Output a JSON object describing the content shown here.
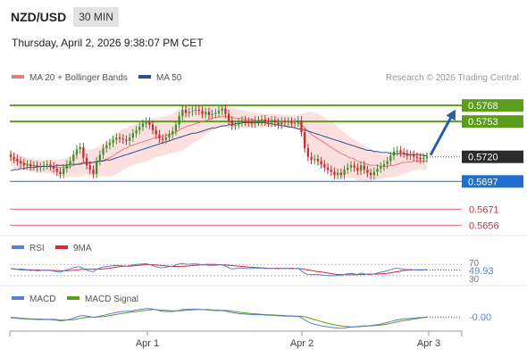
{
  "header": {
    "pair": "NZD/USD",
    "timeframe": "30 MIN",
    "timestamp": "Thursday, April 2, 2026 9:38:07 PM CET"
  },
  "legend": {
    "ma20": "MA 20 + Bollinger Bands",
    "ma50": "MA 50",
    "copyright": "Research © 2026 Trading Central"
  },
  "colors": {
    "green_level": "#5a9e1c",
    "blue_level": "#1f6fd1",
    "red_level": "#d9282f",
    "bull_candle": "#3f8f2a",
    "bear_candle": "#c52b2b",
    "ma20": "#e87a7a",
    "ma50": "#2a4f8f",
    "band": "#fbd6d6",
    "arrow": "#2a5da8",
    "rsi": "#5b7fd6",
    "rsi_ma": "#d9282f",
    "macd": "#5b7fd6",
    "macd_signal": "#5a9e1c"
  },
  "rsi_panel": {
    "label": "RSI",
    "ma_label": "9MA",
    "value": "49.93",
    "upper": "70",
    "lower": "30"
  },
  "macd_panel": {
    "label": "MACD",
    "signal_label": "MACD Signal",
    "value": "-0.00"
  },
  "chart_data": {
    "type": "candlestick",
    "instrument": "NZD/USD",
    "x_tick_labels": [
      "Apr 1",
      "Apr 2",
      "Apr 3"
    ],
    "ylim": [
      0.5648,
      0.5779
    ],
    "current_price": "0.5720",
    "levels": [
      {
        "value": 0.5768,
        "label": "0.5768",
        "kind": "resistance"
      },
      {
        "value": 0.5753,
        "label": "0.5753",
        "kind": "resistance"
      },
      {
        "value": 0.5697,
        "label": "0.5697",
        "kind": "pivot"
      },
      {
        "value": 0.5671,
        "label": "0.5671",
        "kind": "support"
      },
      {
        "value": 0.5656,
        "label": "0.5656",
        "kind": "support"
      }
    ],
    "close": [
      0.572,
      0.5718,
      0.5716,
      0.5714,
      0.5712,
      0.5713,
      0.5711,
      0.5712,
      0.571,
      0.5711,
      0.5712,
      0.5713,
      0.5711,
      0.5709,
      0.5706,
      0.5704,
      0.5709,
      0.5713,
      0.5716,
      0.5722,
      0.5727,
      0.5729,
      0.5719,
      0.5712,
      0.5708,
      0.5704,
      0.5716,
      0.5722,
      0.5728,
      0.5731,
      0.5733,
      0.5736,
      0.5738,
      0.5737,
      0.5736,
      0.5735,
      0.5738,
      0.5742,
      0.5745,
      0.5748,
      0.5751,
      0.5753,
      0.575,
      0.5745,
      0.5741,
      0.5737,
      0.5736,
      0.5738,
      0.5741,
      0.5744,
      0.575,
      0.5758,
      0.5764,
      0.5761,
      0.5762,
      0.5763,
      0.5764,
      0.5763,
      0.576,
      0.5762,
      0.5759,
      0.576,
      0.5761,
      0.5763,
      0.5765,
      0.576,
      0.5754,
      0.5749,
      0.575,
      0.5752,
      0.5754,
      0.5753,
      0.5752,
      0.5751,
      0.5754,
      0.5753,
      0.5755,
      0.5753,
      0.5752,
      0.5754,
      0.5752,
      0.575,
      0.5753,
      0.5752,
      0.5753,
      0.5751,
      0.5752,
      0.5754,
      0.5743,
      0.5728,
      0.572,
      0.5717,
      0.5718,
      0.5716,
      0.5713,
      0.571,
      0.5708,
      0.5706,
      0.5703,
      0.5705,
      0.5703,
      0.5708,
      0.571,
      0.5712,
      0.571,
      0.5707,
      0.5712,
      0.5708,
      0.5705,
      0.5703,
      0.5706,
      0.5709,
      0.5711,
      0.5713,
      0.5716,
      0.5721,
      0.5725,
      0.5726,
      0.5724,
      0.5723,
      0.5721,
      0.5722,
      0.572,
      0.5719,
      0.5718,
      0.5719,
      0.572
    ],
    "ma20": [
      0.5718,
      0.5717,
      0.5716,
      0.5715,
      0.5714,
      0.5713,
      0.5712,
      0.5712,
      0.5711,
      0.5711,
      0.5711,
      0.5711,
      0.5711,
      0.571,
      0.571,
      0.571,
      0.571,
      0.571,
      0.5711,
      0.5712,
      0.5713,
      0.5714,
      0.5715,
      0.5715,
      0.5715,
      0.5715,
      0.5716,
      0.5716,
      0.5717,
      0.5718,
      0.5719,
      0.5721,
      0.5723,
      0.5725,
      0.5727,
      0.5728,
      0.573,
      0.5731,
      0.5732,
      0.5733,
      0.5734,
      0.5735,
      0.5736,
      0.5737,
      0.5738,
      0.5738,
      0.5739,
      0.574,
      0.5741,
      0.5742,
      0.5743,
      0.5745,
      0.5747,
      0.5748,
      0.5749,
      0.575,
      0.5751,
      0.5752,
      0.5753,
      0.5754,
      0.5755,
      0.5756,
      0.5757,
      0.5757,
      0.5758,
      0.5758,
      0.5757,
      0.5757,
      0.5756,
      0.5756,
      0.5756,
      0.5755,
      0.5755,
      0.5755,
      0.5754,
      0.5754,
      0.5754,
      0.5754,
      0.5754,
      0.5754,
      0.5754,
      0.5754,
      0.5753,
      0.5753,
      0.5753,
      0.5753,
      0.5753,
      0.5752,
      0.575,
      0.5747,
      0.5744,
      0.5741,
      0.5739,
      0.5737,
      0.5735,
      0.5733,
      0.5731,
      0.5729,
      0.5727,
      0.5725,
      0.5723,
      0.5722,
      0.572,
      0.5719,
      0.5718,
      0.5716,
      0.5715,
      0.5714,
      0.5713,
      0.5712,
      0.5712,
      0.5712,
      0.5711,
      0.5711,
      0.5711,
      0.5712,
      0.5712,
      0.5713,
      0.5714,
      0.5715,
      0.5715,
      0.5715,
      0.5716,
      0.5716,
      0.5716,
      0.5716,
      0.5716
    ],
    "ma50": [
      0.5707,
      0.5708,
      0.5708,
      0.5709,
      0.5709,
      0.571,
      0.571,
      0.571,
      0.5711,
      0.5711,
      0.5711,
      0.5711,
      0.5711,
      0.5711,
      0.5712,
      0.5712,
      0.5712,
      0.5712,
      0.5713,
      0.5713,
      0.5713,
      0.5713,
      0.5714,
      0.5714,
      0.5714,
      0.5715,
      0.5715,
      0.5716,
      0.5716,
      0.5717,
      0.5717,
      0.5718,
      0.5719,
      0.572,
      0.5721,
      0.5722,
      0.5723,
      0.5724,
      0.5725,
      0.5726,
      0.5727,
      0.5728,
      0.5729,
      0.573,
      0.5731,
      0.5732,
      0.5733,
      0.5734,
      0.5735,
      0.5736,
      0.5737,
      0.5738,
      0.5739,
      0.574,
      0.5741,
      0.5742,
      0.5742,
      0.5743,
      0.5744,
      0.5745,
      0.5746,
      0.5747,
      0.5747,
      0.5748,
      0.5749,
      0.5749,
      0.575,
      0.575,
      0.5751,
      0.5751,
      0.5752,
      0.5752,
      0.5752,
      0.5752,
      0.5752,
      0.5752,
      0.5752,
      0.5752,
      0.5751,
      0.5751,
      0.575,
      0.575,
      0.5749,
      0.5749,
      0.5748,
      0.5748,
      0.5747,
      0.5746,
      0.5746,
      0.5745,
      0.5744,
      0.5743,
      0.5742,
      0.5741,
      0.574,
      0.5739,
      0.5738,
      0.5737,
      0.5736,
      0.5735,
      0.5734,
      0.5733,
      0.5732,
      0.5731,
      0.573,
      0.5729,
      0.5728,
      0.5727,
      0.5726,
      0.5726,
      0.5725,
      0.5725,
      0.5724,
      0.5724,
      0.5724,
      0.5723,
      0.5723,
      0.5723,
      0.5723,
      0.5723,
      0.5722,
      0.5722,
      0.5722,
      0.5722,
      0.5722,
      0.5721,
      0.5721
    ],
    "band_halfwidth": [
      0.0007,
      0.0007,
      0.0007,
      0.0007,
      0.0006,
      0.0006,
      0.0006,
      0.0006,
      0.0006,
      0.0006,
      0.0006,
      0.0006,
      0.0006,
      0.0007,
      0.0007,
      0.0008,
      0.0008,
      0.0009,
      0.001,
      0.0011,
      0.0012,
      0.0012,
      0.0012,
      0.0012,
      0.0012,
      0.0012,
      0.0013,
      0.0014,
      0.0015,
      0.0016,
      0.0017,
      0.0018,
      0.0019,
      0.0019,
      0.0019,
      0.0019,
      0.0019,
      0.0019,
      0.0019,
      0.0019,
      0.0019,
      0.0019,
      0.0019,
      0.0019,
      0.0018,
      0.0018,
      0.0018,
      0.0018,
      0.0018,
      0.0018,
      0.0019,
      0.002,
      0.0021,
      0.002,
      0.0019,
      0.0018,
      0.0017,
      0.0016,
      0.0015,
      0.0013,
      0.0012,
      0.0011,
      0.001,
      0.001,
      0.001,
      0.001,
      0.001,
      0.0009,
      0.0009,
      0.0008,
      0.0008,
      0.0008,
      0.0007,
      0.0007,
      0.0007,
      0.0007,
      0.0006,
      0.0006,
      0.0006,
      0.0006,
      0.0006,
      0.0006,
      0.0006,
      0.0006,
      0.0006,
      0.0006,
      0.0006,
      0.0007,
      0.001,
      0.0014,
      0.0018,
      0.0021,
      0.0022,
      0.0023,
      0.0024,
      0.0024,
      0.0024,
      0.0024,
      0.0024,
      0.0023,
      0.0022,
      0.0021,
      0.002,
      0.0019,
      0.0018,
      0.0018,
      0.0017,
      0.0016,
      0.0016,
      0.0015,
      0.0014,
      0.0013,
      0.0012,
      0.0011,
      0.0011,
      0.0011,
      0.0011,
      0.0011,
      0.0011,
      0.0011,
      0.001,
      0.0009,
      0.0009,
      0.0008,
      0.0008,
      0.0008,
      0.0008
    ],
    "rsi": [
      55,
      53,
      52,
      50,
      49,
      50,
      48,
      49,
      47,
      48,
      49,
      50,
      48,
      46,
      44,
      42,
      47,
      51,
      54,
      58,
      61,
      62,
      54,
      49,
      46,
      43,
      53,
      57,
      61,
      63,
      64,
      66,
      67,
      66,
      65,
      64,
      66,
      68,
      70,
      71,
      72,
      73,
      70,
      66,
      62,
      59,
      58,
      60,
      62,
      64,
      68,
      72,
      74,
      71,
      71,
      72,
      72,
      71,
      68,
      69,
      66,
      67,
      67,
      68,
      69,
      64,
      58,
      54,
      55,
      56,
      57,
      56,
      55,
      55,
      57,
      56,
      57,
      55,
      55,
      56,
      55,
      54,
      56,
      55,
      56,
      54,
      55,
      56,
      47,
      38,
      34,
      33,
      34,
      33,
      32,
      31,
      30,
      30,
      29,
      31,
      30,
      34,
      36,
      38,
      36,
      34,
      39,
      36,
      34,
      33,
      36,
      39,
      42,
      44,
      47,
      51,
      55,
      56,
      54,
      53,
      51,
      52,
      50,
      50,
      49,
      50,
      50
    ],
    "rsi_ma": [
      54,
      54,
      53,
      53,
      52,
      51,
      51,
      50,
      50,
      49,
      49,
      49,
      49,
      48,
      48,
      47,
      47,
      47,
      48,
      49,
      50,
      52,
      53,
      53,
      53,
      53,
      53,
      53,
      54,
      55,
      56,
      58,
      60,
      62,
      63,
      64,
      64,
      65,
      66,
      67,
      68,
      69,
      69,
      69,
      68,
      67,
      66,
      65,
      64,
      63,
      63,
      63,
      64,
      64,
      65,
      66,
      67,
      68,
      69,
      70,
      70,
      70,
      70,
      69,
      69,
      68,
      67,
      66,
      65,
      64,
      63,
      62,
      61,
      60,
      59,
      58,
      57,
      57,
      56,
      56,
      56,
      56,
      56,
      56,
      56,
      56,
      55,
      55,
      54,
      52,
      50,
      48,
      46,
      44,
      43,
      41,
      39,
      37,
      35,
      34,
      33,
      33,
      33,
      33,
      33,
      33,
      34,
      34,
      35,
      35,
      35,
      35,
      36,
      37,
      38,
      40,
      42,
      44,
      46,
      48,
      49,
      50,
      51,
      51,
      51,
      51,
      51
    ],
    "macd": [
      -0.4,
      -0.5,
      -0.6,
      -0.7,
      -0.8,
      -0.9,
      -1.0,
      -1.0,
      -1.1,
      -1.1,
      -1.1,
      -1.1,
      -1.1,
      -1.2,
      -1.4,
      -1.6,
      -1.5,
      -1.2,
      -0.9,
      -0.5,
      0.0,
      0.4,
      0.5,
      0.3,
      0.1,
      -0.2,
      0.0,
      0.3,
      0.6,
      0.9,
      1.2,
      1.5,
      1.8,
      2.0,
      2.1,
      2.2,
      2.3,
      2.5,
      2.7,
      2.9,
      3.1,
      3.3,
      3.3,
      3.1,
      2.8,
      2.5,
      2.2,
      2.1,
      2.1,
      2.1,
      2.3,
      2.6,
      2.9,
      3.0,
      3.0,
      3.1,
      3.1,
      3.0,
      2.9,
      2.8,
      2.7,
      2.6,
      2.5,
      2.5,
      2.5,
      2.3,
      2.0,
      1.7,
      1.5,
      1.3,
      1.2,
      1.1,
      1.0,
      0.9,
      0.9,
      0.8,
      0.8,
      0.7,
      0.6,
      0.6,
      0.5,
      0.4,
      0.4,
      0.3,
      0.3,
      0.2,
      0.2,
      0.2,
      -0.4,
      -1.2,
      -2.0,
      -2.6,
      -3.0,
      -3.3,
      -3.6,
      -3.8,
      -4.0,
      -4.2,
      -4.4,
      -4.5,
      -4.6,
      -4.5,
      -4.3,
      -4.1,
      -4.0,
      -3.9,
      -3.7,
      -3.6,
      -3.6,
      -3.5,
      -3.3,
      -3.1,
      -2.9,
      -2.6,
      -2.3,
      -1.9,
      -1.5,
      -1.2,
      -1.0,
      -0.8,
      -0.7,
      -0.6,
      -0.5,
      -0.4,
      -0.3,
      -0.2,
      -0.1
    ],
    "macd_signal": [
      -0.2,
      -0.3,
      -0.4,
      -0.5,
      -0.6,
      -0.7,
      -0.8,
      -0.8,
      -0.9,
      -0.9,
      -1.0,
      -1.0,
      -1.0,
      -1.0,
      -1.1,
      -1.2,
      -1.3,
      -1.3,
      -1.2,
      -1.1,
      -0.9,
      -0.6,
      -0.4,
      -0.2,
      -0.1,
      -0.1,
      -0.1,
      0.0,
      0.1,
      0.3,
      0.5,
      0.7,
      1.0,
      1.2,
      1.4,
      1.6,
      1.8,
      2.0,
      2.1,
      2.3,
      2.5,
      2.6,
      2.8,
      2.9,
      2.9,
      2.8,
      2.7,
      2.6,
      2.5,
      2.4,
      2.4,
      2.4,
      2.5,
      2.6,
      2.7,
      2.8,
      2.9,
      2.9,
      2.9,
      2.9,
      2.9,
      2.8,
      2.7,
      2.7,
      2.6,
      2.6,
      2.5,
      2.3,
      2.1,
      1.9,
      1.7,
      1.6,
      1.4,
      1.3,
      1.2,
      1.1,
      1.0,
      0.9,
      0.8,
      0.8,
      0.7,
      0.6,
      0.6,
      0.5,
      0.4,
      0.4,
      0.3,
      0.3,
      0.2,
      0.0,
      -0.3,
      -0.7,
      -1.1,
      -1.5,
      -1.9,
      -2.3,
      -2.6,
      -2.9,
      -3.2,
      -3.4,
      -3.6,
      -3.8,
      -3.9,
      -4.0,
      -4.0,
      -4.0,
      -3.9,
      -3.8,
      -3.7,
      -3.6,
      -3.5,
      -3.4,
      -3.3,
      -3.1,
      -2.9,
      -2.6,
      -2.3,
      -2.0,
      -1.7,
      -1.5,
      -1.3,
      -1.1,
      -0.9,
      -0.7,
      -0.5,
      -0.3,
      -0.2
    ]
  }
}
